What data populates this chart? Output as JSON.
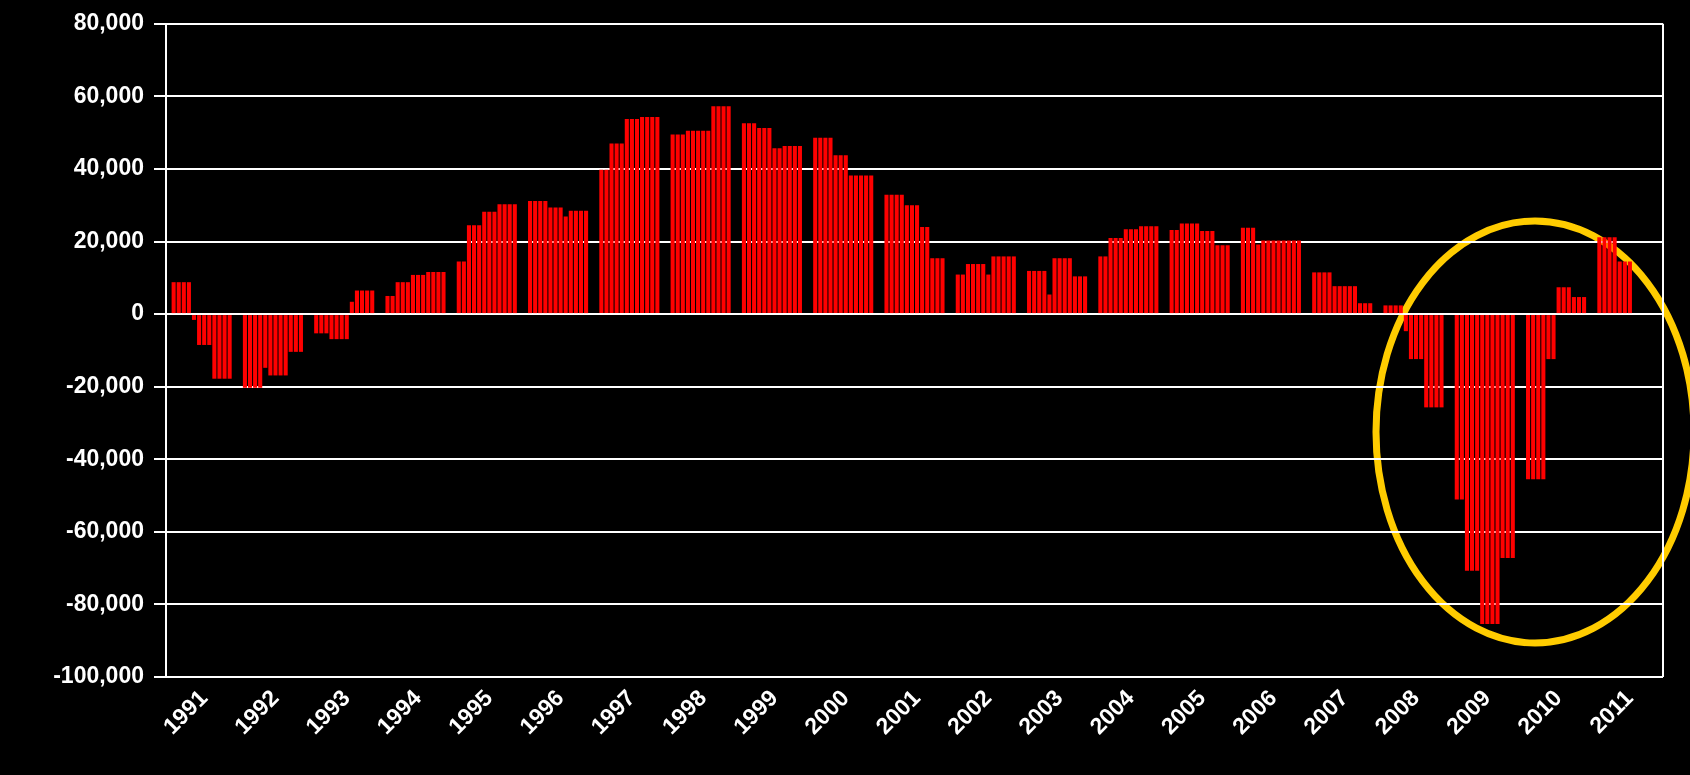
{
  "chart_data": {
    "type": "bar",
    "color": "#ff0000",
    "grid": "y",
    "categories": [
      null,
      null,
      null,
      null,
      null,
      null,
      null,
      "1991",
      null,
      null,
      null,
      null,
      null,
      null,
      null,
      null,
      null,
      null,
      null,
      null,
      null,
      "1992",
      null,
      null,
      null,
      null,
      null,
      null,
      null,
      null,
      null,
      null,
      null,
      null,
      null,
      "1993",
      null,
      null,
      null,
      null,
      null,
      null,
      null,
      null,
      null,
      null,
      null,
      null,
      null,
      "1994",
      null,
      null,
      null,
      null,
      null,
      null,
      null,
      null,
      null,
      null,
      null,
      null,
      null,
      "1995",
      null,
      null,
      null,
      null,
      null,
      null,
      null,
      null,
      null,
      null,
      null,
      null,
      null,
      "1996",
      null,
      null,
      null,
      null,
      null,
      null,
      null,
      null,
      null,
      null,
      null,
      null,
      null,
      "1997",
      null,
      null,
      null,
      null,
      null,
      null,
      null,
      null,
      null,
      null,
      null,
      null,
      null,
      "1998",
      null,
      null,
      null,
      null,
      null,
      null,
      null,
      null,
      null,
      null,
      null,
      null,
      null,
      "1999",
      null,
      null,
      null,
      null,
      null,
      null,
      null,
      null,
      null,
      null,
      null,
      null,
      null,
      "2000",
      null,
      null,
      null,
      null,
      null,
      null,
      null,
      null,
      null,
      null,
      null,
      null,
      null,
      "2001",
      null,
      null,
      null,
      null,
      null,
      null,
      null,
      null,
      null,
      null,
      null,
      null,
      null,
      "2002",
      null,
      null,
      null,
      null,
      null,
      null,
      null,
      null,
      null,
      null,
      null,
      null,
      null,
      "2003",
      null,
      null,
      null,
      null,
      null,
      null,
      null,
      null,
      null,
      null,
      null,
      null,
      null,
      "2004",
      null,
      null,
      null,
      null,
      null,
      null,
      null,
      null,
      null,
      null,
      null,
      null,
      null,
      "2005",
      null,
      null,
      null,
      null,
      null,
      null,
      null,
      null,
      null,
      null,
      null,
      null,
      null,
      "2006",
      null,
      null,
      null,
      null,
      null,
      null,
      null,
      null,
      null,
      null,
      null,
      null,
      null,
      "2007",
      null,
      null,
      null,
      null,
      null,
      null,
      null,
      null,
      null,
      null,
      null,
      null,
      null,
      "2008",
      null,
      null,
      null,
      null,
      null,
      null,
      null,
      null,
      null,
      null,
      null,
      null,
      null,
      "2009",
      null,
      null,
      null,
      null,
      null,
      null,
      null,
      null,
      null,
      null,
      null,
      null,
      null,
      "2010",
      null,
      null,
      null,
      null,
      null,
      null,
      null,
      null,
      null,
      null,
      null,
      null,
      null,
      "2011",
      null,
      null,
      null,
      null,
      null,
      null
    ],
    "values": [
      null,
      8800,
      8800,
      8800,
      8800,
      -1600,
      -8500,
      -8500,
      -8500,
      -17800,
      -17800,
      -17800,
      -17800,
      null,
      null,
      -20300,
      -20300,
      -20300,
      -20300,
      -14800,
      -16900,
      -16900,
      -16900,
      -16900,
      -10400,
      -10400,
      -10400,
      null,
      null,
      -5300,
      -5300,
      -5300,
      -6900,
      -6900,
      -6900,
      -6900,
      3400,
      6500,
      6500,
      6500,
      6500,
      null,
      null,
      5000,
      5000,
      8800,
      8800,
      8800,
      10800,
      10800,
      10800,
      11600,
      11600,
      11600,
      11600,
      null,
      null,
      14500,
      14500,
      24500,
      24500,
      24500,
      28200,
      28200,
      28200,
      30300,
      30300,
      30300,
      30300,
      null,
      null,
      31200,
      31200,
      31200,
      31200,
      29400,
      29400,
      29400,
      26900,
      28500,
      28500,
      28500,
      28500,
      null,
      null,
      39800,
      39800,
      47000,
      47000,
      47000,
      53800,
      53800,
      53800,
      54300,
      54300,
      54300,
      54300,
      null,
      null,
      49500,
      49500,
      49500,
      50500,
      50500,
      50500,
      50500,
      50500,
      57300,
      57300,
      57300,
      57300,
      null,
      null,
      52600,
      52600,
      52600,
      51300,
      51300,
      51300,
      45700,
      45700,
      46300,
      46300,
      46300,
      46300,
      null,
      null,
      48600,
      48600,
      48600,
      48600,
      43800,
      43800,
      43800,
      38200,
      38200,
      38200,
      38200,
      38200,
      null,
      null,
      32900,
      32900,
      32900,
      32900,
      30000,
      30000,
      30000,
      24000,
      24000,
      15400,
      15400,
      15400,
      null,
      null,
      10900,
      10900,
      13800,
      13800,
      13800,
      13800,
      10900,
      15900,
      15900,
      15900,
      15900,
      15900,
      null,
      null,
      11900,
      11900,
      11900,
      11900,
      5400,
      15400,
      15400,
      15400,
      15400,
      10400,
      10400,
      10400,
      null,
      null,
      15900,
      15900,
      21000,
      21000,
      21000,
      23400,
      23400,
      23400,
      24200,
      24200,
      24200,
      24200,
      null,
      null,
      23200,
      23200,
      25000,
      25000,
      25000,
      25000,
      22900,
      22900,
      22900,
      19000,
      19000,
      19000,
      null,
      null,
      23800,
      23800,
      23800,
      19200,
      20300,
      20300,
      20300,
      20300,
      20300,
      20300,
      20300,
      20300,
      null,
      null,
      11500,
      11500,
      11500,
      11500,
      7700,
      7700,
      7700,
      7700,
      7700,
      3000,
      3000,
      3000,
      null,
      null,
      2400,
      2400,
      2400,
      2400,
      -4700,
      -12400,
      -12400,
      -12400,
      -25700,
      -25700,
      -25700,
      -25700,
      null,
      null,
      -51100,
      -51100,
      -70700,
      -70700,
      -70700,
      -85400,
      -85400,
      -85400,
      -85400,
      -67200,
      -67200,
      -67200,
      null,
      null,
      -45500,
      -45500,
      -45500,
      -45500,
      -12400,
      -12400,
      7400,
      7400,
      7400,
      4700,
      4700,
      4700,
      null,
      null,
      21200,
      21200,
      21200,
      21200,
      14500,
      14500,
      14500,
      null,
      null,
      null,
      null,
      null,
      null
    ],
    "ylim": [
      -100000,
      80000
    ],
    "yticks": [
      {
        "value": -100000,
        "label": "-100,000"
      },
      {
        "value": -80000,
        "label": "-80,000"
      },
      {
        "value": -60000,
        "label": "-60,000"
      },
      {
        "value": -40000,
        "label": "-40,000"
      },
      {
        "value": -20000,
        "label": "-20,000"
      },
      0,
      {
        "value": 20000,
        "label": "20,000"
      },
      {
        "value": 40000,
        "label": "40,000"
      },
      {
        "value": 60000,
        "label": "60,000"
      },
      {
        "value": 80000,
        "label": "80,000"
      }
    ]
  }
}
